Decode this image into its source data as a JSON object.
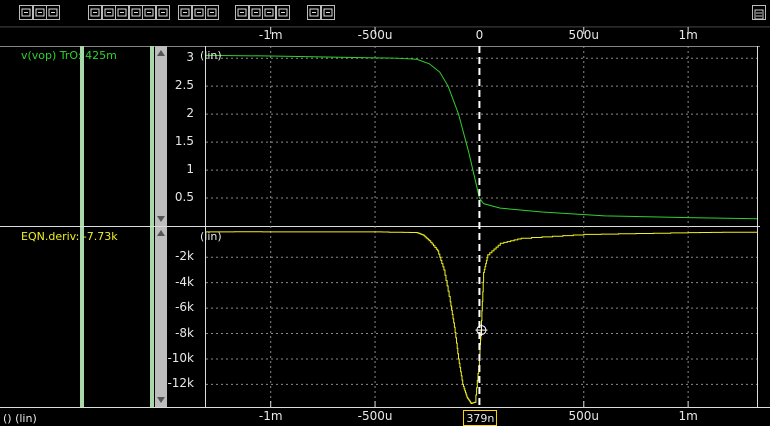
{
  "toolbar": {
    "icons": [
      "zoom-in-icon",
      "zoom-out-icon",
      "zoom-fit-icon",
      "crosshair-icon",
      "grid-bars-icon",
      "measure-icon",
      "zoom-box-icon",
      "marker-icon",
      "grid-toggle-icon",
      "wave-icon",
      "arrow-left-icon",
      "arrow-right-icon",
      "print-icon",
      "delete-icon",
      "copy-icon",
      "paste-icon",
      "window-icon",
      "export-icon"
    ],
    "menu_icon": "menu-icon"
  },
  "x_axis": {
    "ticks": [
      "-1m",
      "-500u",
      "0",
      "500u",
      "1m"
    ],
    "tick_values": [
      -0.001,
      -0.0005,
      0,
      0.0005,
      0.001
    ],
    "range": [
      -0.00131,
      0.00133
    ]
  },
  "traces": {
    "top": {
      "label": "v(vop) TrO: 425m",
      "color": "#2fd12f",
      "scale": "(lin)",
      "yticks": [
        "3",
        "2.5",
        "2",
        "1.5",
        "1",
        "0.5"
      ],
      "ytick_values": [
        3,
        2.5,
        2,
        1.5,
        1,
        0.5
      ]
    },
    "bottom": {
      "label": "EQN.deriv: -7.73k",
      "color": "#f0f020",
      "scale": "(lin)",
      "yticks": [
        "-2k",
        "-4k",
        "-6k",
        "-8k",
        "-10k",
        "-12k"
      ],
      "ytick_values": [
        -2000,
        -4000,
        -6000,
        -8000,
        -10000,
        -12000
      ]
    }
  },
  "cursor": {
    "readout": "379n"
  },
  "status": {
    "text": "() (lin)"
  },
  "chart_data": [
    {
      "type": "line",
      "series": [
        {
          "name": "v(vop)",
          "color": "#2fd12f",
          "points": [
            [
              -0.00131,
              3.05
            ],
            [
              -0.001,
              3.04
            ],
            [
              -0.0007,
              3.02
            ],
            [
              -0.0004,
              3.0
            ],
            [
              -0.0003,
              2.98
            ],
            [
              -0.00024,
              2.9
            ],
            [
              -0.00019,
              2.75
            ],
            [
              -0.00015,
              2.5
            ],
            [
              -0.0001,
              2.0
            ],
            [
              -5e-05,
              1.3
            ],
            [
              0,
              0.5
            ],
            [
              2e-05,
              0.4
            ],
            [
              0.0001,
              0.32
            ],
            [
              0.0003,
              0.25
            ],
            [
              0.0006,
              0.18
            ],
            [
              0.001,
              0.15
            ],
            [
              0.00133,
              0.13
            ]
          ]
        }
      ],
      "ylim": [
        0,
        3.2
      ],
      "yticks": [
        0.5,
        1,
        1.5,
        2,
        2.5,
        3
      ]
    },
    {
      "type": "line",
      "series": [
        {
          "name": "EQN.deriv",
          "color": "#f0f020",
          "points": [
            [
              -0.00131,
              0
            ],
            [
              -0.0005,
              -10
            ],
            [
              -0.0003,
              -60
            ],
            [
              -0.00027,
              -250
            ],
            [
              -0.00024,
              -700
            ],
            [
              -0.0002,
              -1500
            ],
            [
              -0.00017,
              -3000
            ],
            [
              -0.00014,
              -5500
            ],
            [
              -0.00012,
              -7500
            ],
            [
              -0.0001,
              -10000
            ],
            [
              -8e-05,
              -12000
            ],
            [
              -6e-05,
              -13000
            ],
            [
              -4e-05,
              -13500
            ],
            [
              -2e-05,
              -13400
            ],
            [
              0,
              -10000
            ],
            [
              8e-06,
              -7730
            ],
            [
              2e-05,
              -3200
            ],
            [
              4e-05,
              -1800
            ],
            [
              0.0001,
              -900
            ],
            [
              0.0002,
              -500
            ],
            [
              0.0005,
              -200
            ],
            [
              0.001,
              -60
            ],
            [
              0.00133,
              -20
            ]
          ]
        }
      ],
      "ylim": [
        -13700,
        300
      ],
      "yticks": [
        -12000,
        -10000,
        -8000,
        -6000,
        -4000,
        -2000
      ]
    }
  ]
}
